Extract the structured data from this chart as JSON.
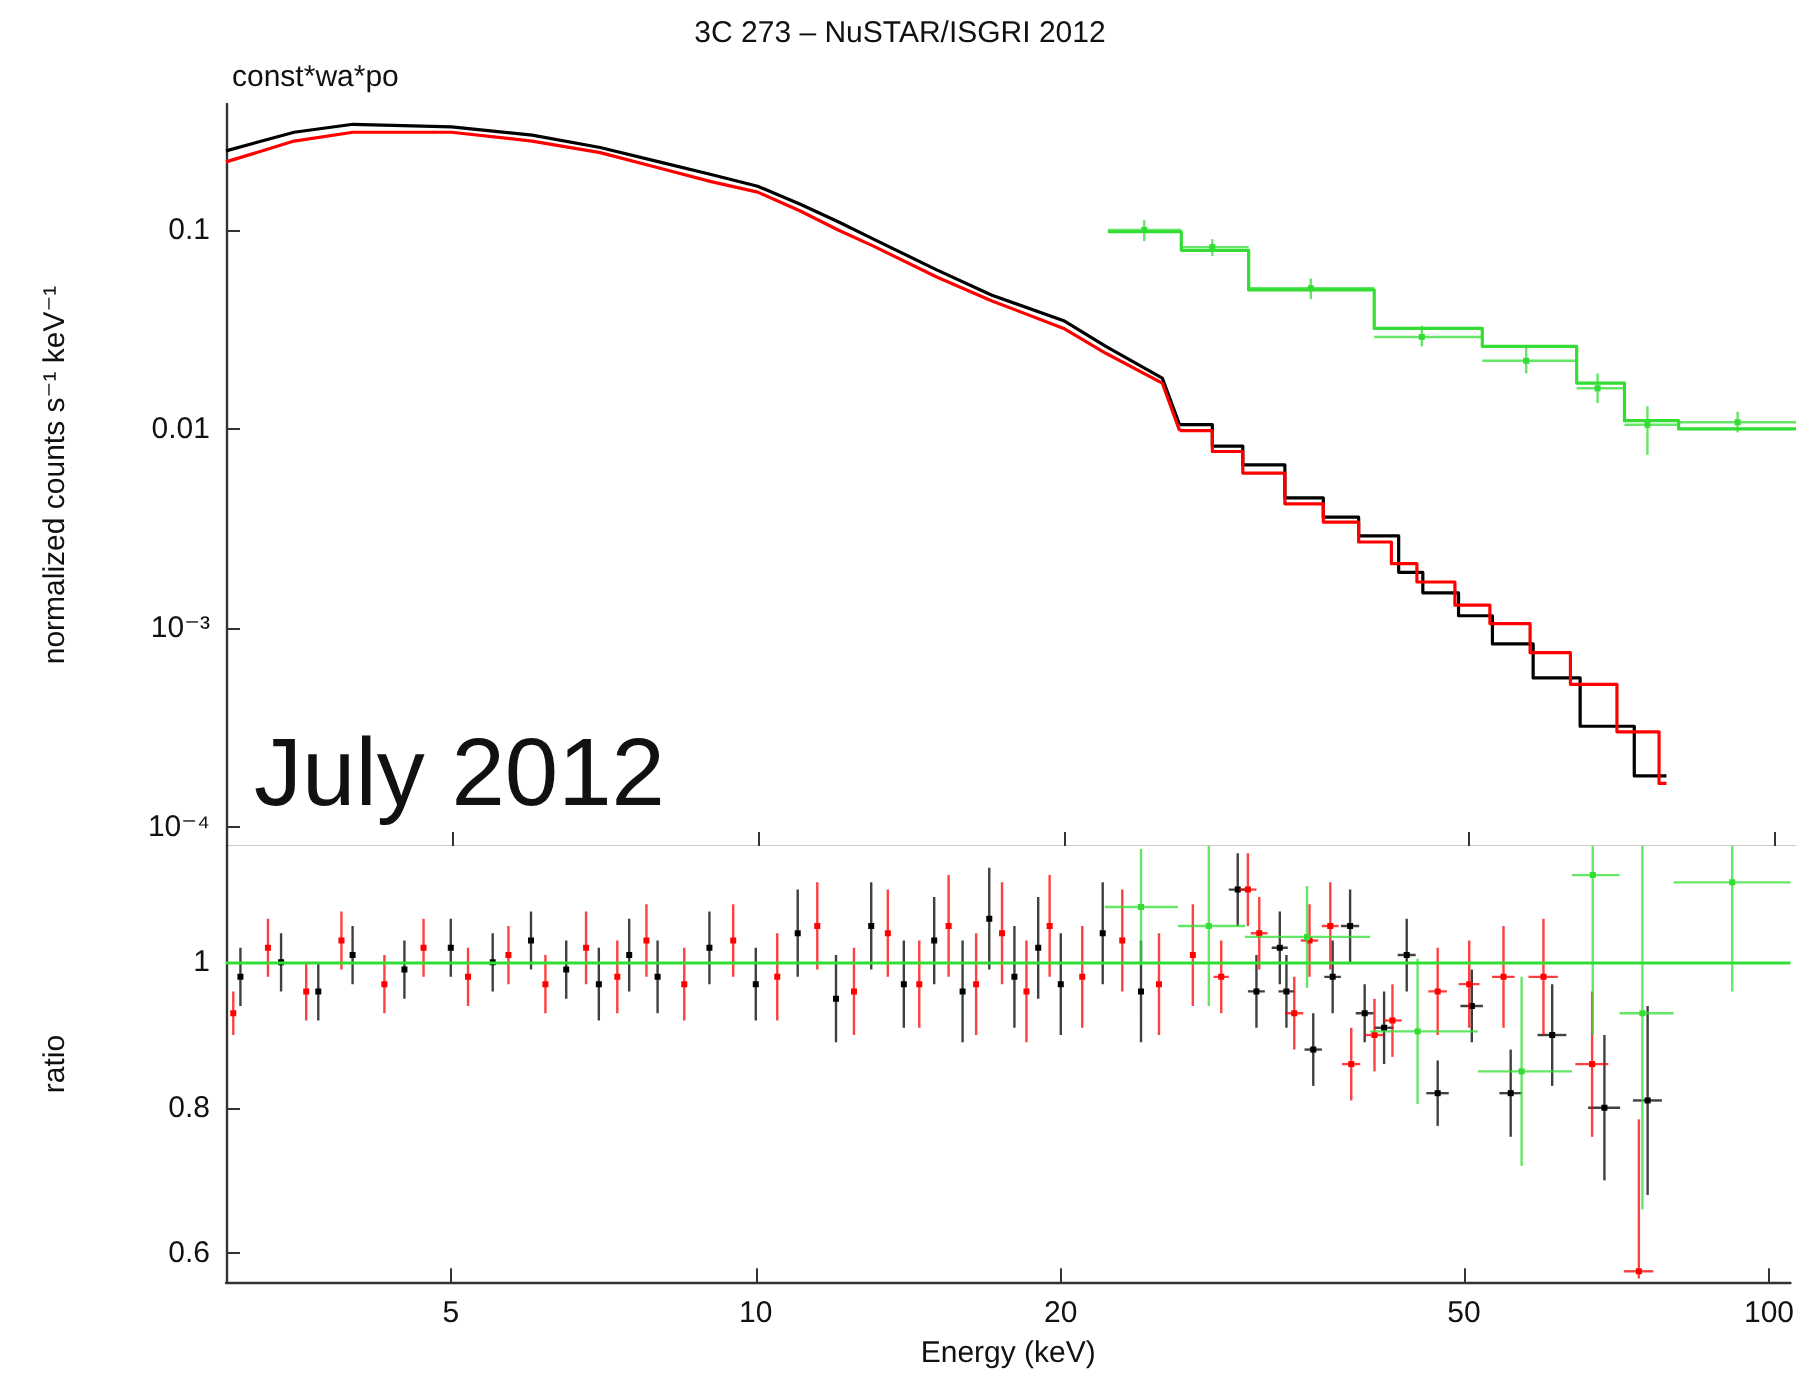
{
  "chart_data": [
    {
      "type": "step",
      "title": "3C 273 – NuSTAR/ISGRI 2012",
      "subtitle": "const*wa*po",
      "ylabel": "normalized counts s⁻¹ keV⁻¹",
      "annotations": [
        "July 2012"
      ],
      "log": "xy",
      "xlim": [
        3,
        105
      ],
      "xticks": [
        5,
        10,
        20,
        50,
        100
      ],
      "ylim": [
        8e-05,
        0.43
      ],
      "yticks": [
        0.1,
        0.01,
        {
          "value": 0.001,
          "label": "10⁻³"
        },
        {
          "value": 0.0001,
          "label": "10⁻⁴"
        }
      ],
      "tick_labels": "y",
      "grid": false,
      "marker": "none",
      "line_style": "solid",
      "series": [
        {
          "type": "line",
          "color": "#000000",
          "x": [
            3,
            3.5,
            4,
            5,
            6,
            7,
            8,
            9,
            10,
            11,
            12,
            13,
            15,
            17,
            20,
            22,
            25,
            26
          ],
          "values": [
            0.25,
            0.31,
            0.34,
            0.33,
            0.3,
            0.26,
            0.22,
            0.19,
            0.166,
            0.135,
            0.11,
            0.09,
            0.063,
            0.047,
            0.035,
            0.026,
            0.018,
            0.0105
          ]
        },
        {
          "color": "#000000",
          "x": [
            26,
            28,
            30,
            33,
            36,
            39,
            42.7,
            45.1,
            48.9,
            52.8,
            57.9,
            64.4,
            72.8,
            78.3
          ],
          "values": [
            0.0105,
            0.0082,
            0.0066,
            0.0045,
            0.0036,
            0.0029,
            0.0019,
            0.0015,
            0.00115,
            0.00083,
            0.00056,
            0.00032,
            0.00018,
            0.00018
          ]
        },
        {
          "type": "line",
          "color": "#ff0000",
          "x": [
            3,
            3.5,
            4,
            5,
            6,
            7,
            8,
            9,
            10,
            11,
            12,
            13,
            15,
            17,
            20,
            22,
            25,
            26
          ],
          "values": [
            0.22,
            0.28,
            0.31,
            0.31,
            0.28,
            0.245,
            0.205,
            0.175,
            0.155,
            0.125,
            0.1,
            0.083,
            0.058,
            0.044,
            0.032,
            0.024,
            0.017,
            0.0098
          ]
        },
        {
          "color": "#ff0000",
          "x": [
            26,
            28,
            30,
            33,
            36,
            39,
            42,
            44.5,
            48.5,
            52.5,
            57.5,
            63,
            70,
            77,
            78.3
          ],
          "values": [
            0.0098,
            0.0077,
            0.006,
            0.0042,
            0.0034,
            0.0027,
            0.0021,
            0.0017,
            0.0013,
            0.00105,
            0.00075,
            0.00052,
            0.0003,
            0.000165,
            0.000165
          ]
        },
        {
          "color": "#33dd33",
          "x": [
            22.1,
            26.1,
            30.4,
            40.4,
            51.6,
            63.9,
            71.2,
            80.5,
            105
          ],
          "values": [
            0.098,
            0.079,
            0.05,
            0.032,
            0.026,
            0.017,
            0.011,
            0.01,
            0.01
          ]
        },
        {
          "type": "scatter",
          "marker": "square",
          "color": "#33dd33",
          "x": [
            24,
            28,
            35,
            45,
            57,
            67,
            75,
            92
          ],
          "values": [
            0.1,
            0.082,
            0.051,
            0.029,
            0.022,
            0.016,
            0.0105,
            0.0108
          ],
          "errors": [
            0.012,
            0.008,
            0.006,
            [
              0.026,
              0.033
            ],
            [
              0.019,
              0.026
            ],
            [
              0.0135,
              0.019
            ],
            [
              0.0074,
              0.013
            ],
            [
              0.0096,
              0.0122
            ]
          ],
          "xerrors": [
            [
              22.1,
              26.1
            ],
            [
              26.1,
              30.4
            ],
            [
              30.4,
              40.4
            ],
            [
              40.4,
              51.6
            ],
            [
              51.6,
              63.9
            ],
            [
              63.9,
              71.2
            ],
            [
              71.2,
              80.5
            ],
            [
              80.5,
              105
            ]
          ]
        }
      ]
    },
    {
      "type": "scatter",
      "xlabel": "Energy (keV)",
      "ylabel": "ratio",
      "log": "x",
      "marker": "square",
      "xlim": [
        3,
        105
      ],
      "xticks": [
        5,
        10,
        20,
        50,
        100
      ],
      "ylim": [
        0.56,
        1.16
      ],
      "yticks": [
        0.6,
        0.8,
        1
      ],
      "grid": false,
      "ref_lines": [
        {
          "axis": "y",
          "value": 1,
          "color": "#33dd33"
        }
      ],
      "series": [
        {
          "color": "#000000",
          "x": [
            3.1,
            3.4,
            3.7,
            4,
            4.5,
            5,
            5.5,
            6,
            6.5,
            7,
            7.5,
            8,
            9,
            10,
            11,
            12,
            13,
            14,
            15,
            16,
            17,
            18,
            19,
            20,
            22,
            24,
            29.9,
            31.2,
            32.9,
            33.4,
            35.5,
            37.1,
            38.6,
            39.9,
            41.7,
            43.9,
            47.1,
            50.9,
            55.6,
            61.1,
            68.8,
            75.9
          ],
          "values": [
            0.98,
            1,
            0.96,
            1.01,
            0.99,
            1.02,
            1,
            1.03,
            0.99,
            0.97,
            1.01,
            0.98,
            1.02,
            0.97,
            1.04,
            0.95,
            1.05,
            0.97,
            1.03,
            0.96,
            1.06,
            0.98,
            1.02,
            0.97,
            1.04,
            0.96,
            1.1,
            0.96,
            1.02,
            0.96,
            0.88,
            0.98,
            1.05,
            0.93,
            0.91,
            1.01,
            0.82,
            0.94,
            0.82,
            0.9,
            0.8,
            0.81
          ],
          "errors": [
            0.04,
            0.04,
            0.04,
            0.04,
            0.04,
            0.04,
            0.04,
            0.04,
            0.04,
            0.05,
            0.05,
            0.05,
            0.05,
            0.05,
            0.06,
            0.06,
            0.06,
            0.06,
            0.06,
            0.07,
            0.07,
            0.07,
            0.07,
            0.07,
            0.07,
            0.07,
            0.05,
            0.05,
            0.05,
            0.05,
            0.05,
            0.05,
            0.05,
            0.04,
            0.05,
            0.05,
            0.045,
            0.05,
            0.06,
            0.07,
            0.1,
            0.13
          ],
          "xerrors": [
            null,
            null,
            null,
            null,
            null,
            null,
            null,
            null,
            null,
            null,
            null,
            null,
            null,
            null,
            null,
            null,
            null,
            null,
            null,
            null,
            null,
            null,
            null,
            null,
            null,
            null,
            0.6,
            0.6,
            0.6,
            0.6,
            0.7,
            0.7,
            0.8,
            0.8,
            0.9,
            0.9,
            1.2,
            1.3,
            1.4,
            2,
            2.5,
            2.5
          ]
        },
        {
          "color": "#ff0000",
          "x": [
            3.05,
            3.3,
            3.6,
            3.9,
            4.3,
            4.7,
            5.2,
            5.7,
            6.2,
            6.8,
            7.3,
            7.8,
            8.5,
            9.5,
            10.5,
            11.5,
            12.5,
            13.5,
            14.5,
            15.5,
            16.5,
            17.5,
            18.5,
            19.5,
            21,
            23,
            25,
            27,
            28.8,
            30.6,
            31.4,
            34,
            35.2,
            36.9,
            38.7,
            40.8,
            42.5,
            47.1,
            50.6,
            54.7,
            59.9,
            66.9,
            74.4
          ],
          "values": [
            0.93,
            1.02,
            0.96,
            1.03,
            0.97,
            1.02,
            0.98,
            1.01,
            0.97,
            1.02,
            0.98,
            1.03,
            0.97,
            1.03,
            0.98,
            1.05,
            0.96,
            1.04,
            0.97,
            1.05,
            0.97,
            1.04,
            0.96,
            1.05,
            0.98,
            1.03,
            0.97,
            1.01,
            0.98,
            1.1,
            1.04,
            0.93,
            1.03,
            1.05,
            0.86,
            0.9,
            0.92,
            0.96,
            0.97,
            0.98,
            0.98,
            0.86,
            0.575
          ],
          "errors": [
            0.03,
            0.04,
            0.04,
            0.04,
            0.04,
            0.04,
            0.04,
            0.04,
            0.04,
            0.05,
            0.05,
            0.05,
            0.05,
            0.05,
            0.06,
            0.06,
            0.06,
            0.06,
            0.06,
            0.07,
            0.07,
            0.07,
            0.07,
            0.07,
            0.07,
            0.07,
            0.07,
            0.07,
            0.05,
            0.05,
            0.05,
            0.05,
            0.05,
            0.06,
            0.05,
            0.05,
            0.05,
            0.06,
            0.06,
            0.07,
            0.08,
            0.1,
            [
              0.565,
              0.784
            ]
          ],
          "xerrors": [
            null,
            null,
            null,
            null,
            null,
            null,
            null,
            null,
            null,
            null,
            null,
            null,
            null,
            null,
            null,
            null,
            null,
            null,
            null,
            null,
            null,
            null,
            null,
            null,
            null,
            null,
            null,
            null,
            0.5,
            0.6,
            0.6,
            0.7,
            0.7,
            0.7,
            0.8,
            0.9,
            0.9,
            1,
            1.2,
            1.4,
            2,
            2.5,
            2.5
          ]
        },
        {
          "color": "#33dd33",
          "x": [
            24,
            28,
            35,
            45,
            57,
            67,
            75,
            92
          ],
          "values": [
            1.076,
            1.05,
            1.035,
            0.905,
            0.85,
            1.12,
            0.93,
            1.11
          ],
          "errors": [
            0.08,
            0.11,
            0.07,
            0.1,
            0.13,
            [
              0.9,
              1.16
            ],
            [
              0.66,
              1.16
            ],
            [
              0.96,
              1.16
            ]
          ],
          "xerrors": [
            [
              22.1,
              26.1
            ],
            [
              26.1,
              30.4
            ],
            [
              30.4,
              40.4
            ],
            [
              40.4,
              51.6
            ],
            [
              51.6,
              63.9
            ],
            [
              63.9,
              71.2
            ],
            [
              71.2,
              80.5
            ],
            [
              80.5,
              105
            ]
          ]
        }
      ]
    }
  ]
}
